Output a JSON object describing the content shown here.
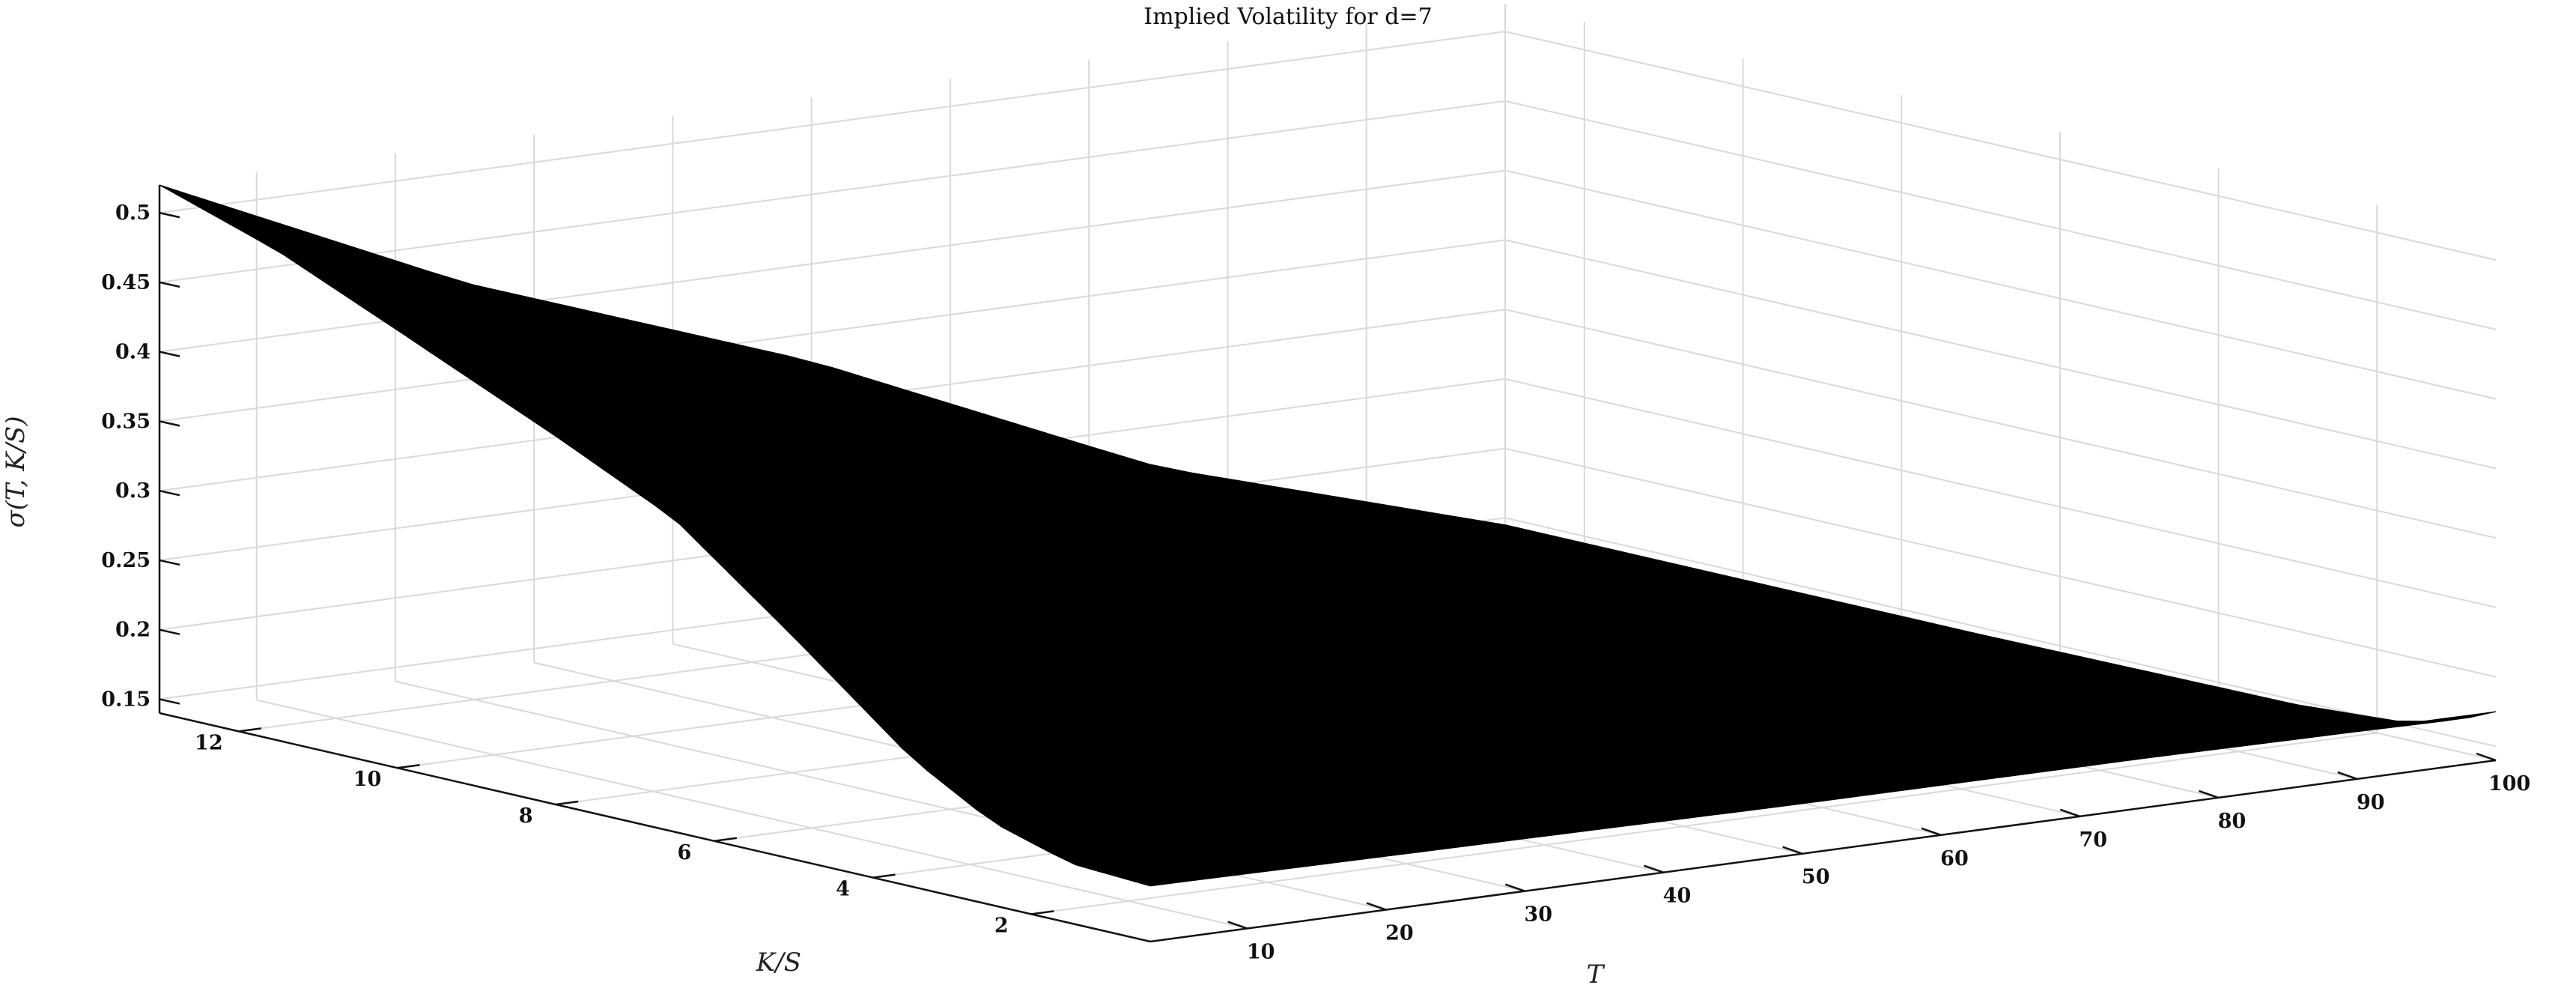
{
  "chart_data": {
    "type": "surface",
    "title": "Implied Volatility for d=7",
    "xlabel": "T",
    "ylabel": "K/S",
    "zlabel": "σ(T, K/S)",
    "x_ticks": [
      "10",
      "20",
      "30",
      "40",
      "50",
      "60",
      "70",
      "80",
      "90",
      "100"
    ],
    "y_ticks": [
      "2",
      "4",
      "6",
      "8",
      "10",
      "12"
    ],
    "z_ticks": [
      "0.15",
      "0.2",
      "0.25",
      "0.3",
      "0.35",
      "0.4",
      "0.45",
      "0.5"
    ],
    "xlim": [
      3,
      100
    ],
    "ylim": [
      0.5,
      13
    ],
    "zlim": [
      0.14,
      0.52
    ],
    "grid": true,
    "surface_color": "#000000",
    "surface": {
      "smile_at_T_min": [
        {
          "k": 0.5,
          "sigma": 0.18
        },
        {
          "k": 1.5,
          "sigma": 0.183
        },
        {
          "k": 2.5,
          "sigma": 0.2
        },
        {
          "k": 3.5,
          "sigma": 0.232
        },
        {
          "k": 5,
          "sigma": 0.3
        },
        {
          "k": 6.5,
          "sigma": 0.365
        },
        {
          "k": 8,
          "sigma": 0.405
        },
        {
          "k": 10,
          "sigma": 0.455
        },
        {
          "k": 11.5,
          "sigma": 0.492
        },
        {
          "k": 13,
          "sigma": 0.52
        }
      ],
      "smile_at_T_max": [
        {
          "k": 0.5,
          "sigma": 0.175
        },
        {
          "k": 1,
          "sigma": 0.162
        },
        {
          "k": 1.7,
          "sigma": 0.152
        },
        {
          "k": 3,
          "sigma": 0.147
        },
        {
          "k": 7,
          "sigma": 0.145
        },
        {
          "k": 13,
          "sigma": 0.145
        }
      ],
      "term_at_K_min": [
        {
          "t": 3,
          "sigma": 0.18
        },
        {
          "t": 50,
          "sigma": 0.176
        },
        {
          "t": 100,
          "sigma": 0.175
        }
      ],
      "term_at_K_max": [
        {
          "t": 3,
          "sigma": 0.52
        },
        {
          "t": 25,
          "sigma": 0.42
        },
        {
          "t": 50,
          "sigma": 0.33
        },
        {
          "t": 75,
          "sigma": 0.22
        },
        {
          "t": 100,
          "sigma": 0.145
        }
      ]
    }
  }
}
